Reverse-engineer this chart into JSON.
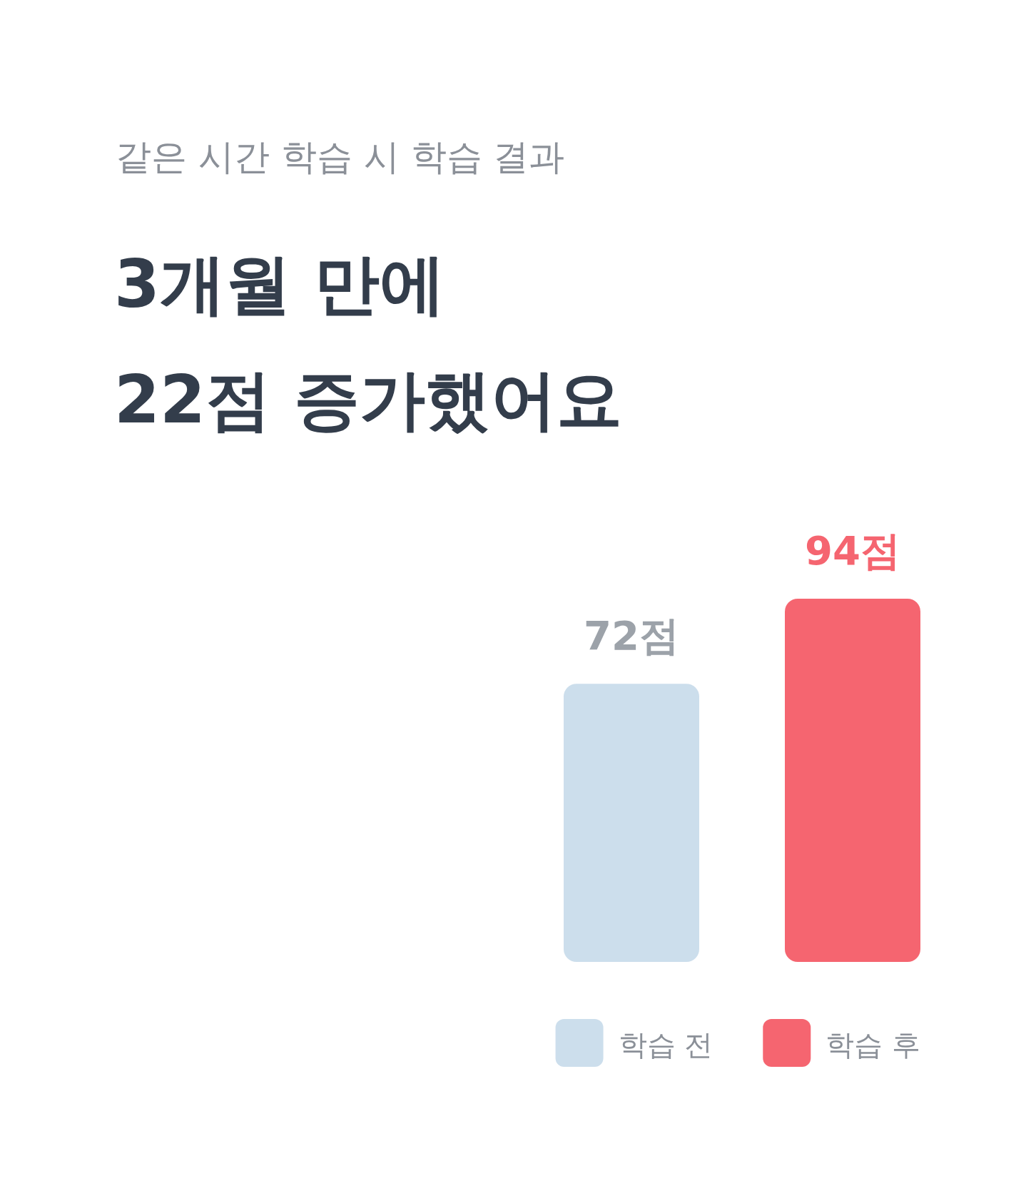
{
  "chart_data": {
    "type": "bar",
    "subtitle": "같은 시간 학습 시 학습 결과",
    "title": "3개월 만에\n22점 증가했어요",
    "categories": [
      null
    ],
    "legend": "bottom right",
    "series": [
      {
        "name": "학습 전",
        "color": "#ccdeec",
        "values": [
          72
        ],
        "value_labels": [
          "72점"
        ]
      },
      {
        "name": "학습 후",
        "color": "#f56570",
        "values": [
          94
        ],
        "value_labels": [
          "94점"
        ]
      }
    ]
  }
}
